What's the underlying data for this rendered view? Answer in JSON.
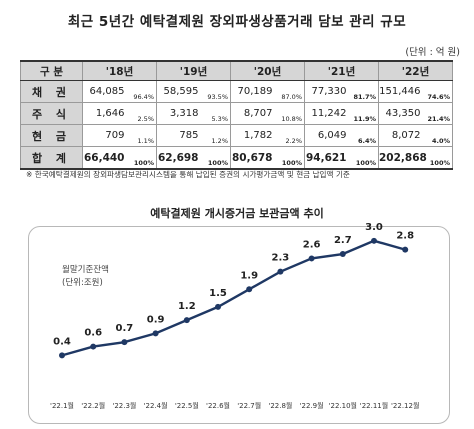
{
  "title": "최근 5년간 예탁결제원 장외파생상품거래 담보 관리 규모",
  "unit": "(단위 : 억 원)",
  "table": {
    "corner": "구 분",
    "columns": [
      "'18년",
      "'19년",
      "'20년",
      "'21년",
      "'22년"
    ],
    "rows": [
      {
        "label": "채 권",
        "cells": [
          [
            "64,085",
            "96.4%"
          ],
          [
            "58,595",
            "93.5%"
          ],
          [
            "70,189",
            "87.0%"
          ],
          [
            "77,330",
            "81.7%"
          ],
          [
            "151,446",
            "74.6%"
          ]
        ]
      },
      {
        "label": "주 식",
        "cells": [
          [
            "1,646",
            "2.5%"
          ],
          [
            "3,318",
            "5.3%"
          ],
          [
            "8,707",
            "10.8%"
          ],
          [
            "11,242",
            "11.9%"
          ],
          [
            "43,350",
            "21.4%"
          ]
        ]
      },
      {
        "label": "현 금",
        "cells": [
          [
            "709",
            "1.1%"
          ],
          [
            "785",
            "1.2%"
          ],
          [
            "1,782",
            "2.2%"
          ],
          [
            "6,049",
            "6.4%"
          ],
          [
            "8,072",
            "4.0%"
          ]
        ]
      },
      {
        "label": "합 계",
        "cells": [
          [
            "66,440",
            "100%"
          ],
          [
            "62,698",
            "100%"
          ],
          [
            "80,678",
            "100%"
          ],
          [
            "94,621",
            "100%"
          ],
          [
            "202,868",
            "100%"
          ]
        ]
      }
    ]
  },
  "note": "※ 한국예탁결제원의 장외파생담보관리시스템을 통해 납입된 증권의 시가평가금액 및 현금 납입액 기준",
  "chart_data": {
    "type": "line",
    "title": "예탁결제원 개시증거금 보관금액 추이",
    "ylabel_line1": "월말기준잔액",
    "ylabel_line2": "(단위:조원)",
    "categories": [
      "'22.1월",
      "'22.2월",
      "'22.3월",
      "'22.4월",
      "'22.5월",
      "'22.6월",
      "'22.7월",
      "'22.8월",
      "'22.9월",
      "'22.10월",
      "'22.11월",
      "'22.12월"
    ],
    "values": [
      0.4,
      0.6,
      0.7,
      0.9,
      1.2,
      1.5,
      1.9,
      2.3,
      2.6,
      2.7,
      3.0,
      2.8
    ],
    "value_labels": [
      "0.4",
      "0.6",
      "0.7",
      "0.9",
      "1.2",
      "1.5",
      "1.9",
      "2.3",
      "2.6",
      "2.7",
      "3.0",
      "2.8"
    ],
    "ylim": [
      0,
      3.2
    ],
    "line_color": "#1f3864",
    "grid": false
  }
}
